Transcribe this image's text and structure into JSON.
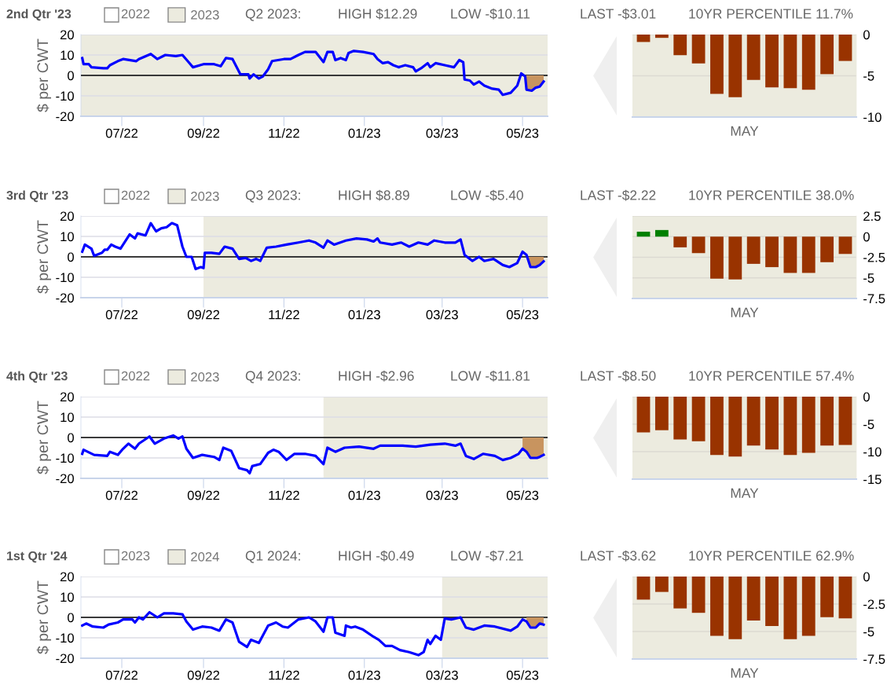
{
  "chart_data": [
    {
      "type": "line",
      "title": "2nd Qtr '23",
      "ylabel": "$ per CWT",
      "xlim": [
        "2022-05-31",
        "2023-05-20"
      ],
      "xticks": [
        {
          "value": "2022-07-01",
          "label": "07/22"
        },
        {
          "value": "2022-09-01",
          "label": "09/22"
        },
        {
          "value": "2022-11-01",
          "label": "11/22"
        },
        {
          "value": "2023-01-01",
          "label": "01/23"
        },
        {
          "value": "2023-03-01",
          "label": "03/23"
        },
        {
          "value": "2023-05-01",
          "label": "05/23"
        }
      ],
      "ylim": [
        -20,
        20
      ],
      "yticks": [
        -20,
        -10,
        0,
        10,
        20
      ],
      "grid": "y",
      "legend": "top left",
      "bands": [
        {
          "axis": "x",
          "from": "2022-05-31",
          "to": "2023-05-20",
          "label": "2023",
          "color": "#ecebdf"
        }
      ],
      "ref_lines": [
        {
          "axis": "y",
          "value": 0,
          "color": "#000000"
        }
      ],
      "annotations": [
        "2022",
        "Q2 2023:",
        "HIGH $12.29",
        "LOW -$10.11",
        "LAST -$3.01",
        "10YR PERCENTILE 11.7%"
      ],
      "series": [
        {
          "color": "#0000ff",
          "x": [
            "2022-06-01",
            "2022-06-02",
            "2022-06-06",
            "2022-06-08",
            "2022-06-17",
            "2022-06-20",
            "2022-06-22",
            "2022-06-28",
            "2022-07-02",
            "2022-07-12",
            "2022-07-14",
            "2022-07-23",
            "2022-07-28",
            "2022-08-03",
            "2022-08-11",
            "2022-08-16",
            "2022-08-20",
            "2022-08-24",
            "2022-09-01",
            "2022-09-09",
            "2022-09-14",
            "2022-09-18",
            "2022-09-23",
            "2022-09-29",
            "2022-10-05",
            "2022-10-06",
            "2022-10-09",
            "2022-10-13",
            "2022-10-16",
            "2022-10-20",
            "2022-10-23",
            "2022-11-01",
            "2022-11-04",
            "2022-11-06",
            "2022-11-12",
            "2022-11-17",
            "2022-11-25",
            "2022-12-01",
            "2022-12-04",
            "2022-12-08",
            "2022-12-10",
            "2022-12-14",
            "2022-12-18",
            "2022-12-20",
            "2022-12-24",
            "2022-12-31",
            "2023-01-08",
            "2023-01-11",
            "2023-01-15",
            "2023-01-19",
            "2023-01-23",
            "2023-01-27",
            "2023-02-01",
            "2023-02-07",
            "2023-02-09",
            "2023-02-13",
            "2023-02-18",
            "2023-02-20",
            "2023-02-24",
            "2023-03-03",
            "2023-03-10",
            "2023-03-14",
            "2023-03-17",
            "2023-03-18",
            "2023-03-22",
            "2023-03-25",
            "2023-03-29",
            "2023-04-02",
            "2023-04-08",
            "2023-04-13",
            "2023-04-16",
            "2023-04-22",
            "2023-04-27",
            "2023-04-30",
            "2023-05-03",
            "2023-05-04",
            "2023-05-08",
            "2023-05-11",
            "2023-05-14",
            "2023-05-17"
          ],
          "values": [
            8.5,
            5.5,
            5.5,
            4,
            3.5,
            3.5,
            5,
            7,
            8,
            7,
            8,
            10.5,
            8,
            10,
            9.5,
            10,
            7,
            4,
            5.5,
            5.5,
            4.5,
            8.5,
            8,
            0.5,
            0.5,
            -1.5,
            0.5,
            -1.5,
            -0.5,
            3,
            7,
            8,
            8,
            8,
            10,
            11.5,
            11.5,
            6.5,
            11.5,
            11.5,
            7.5,
            8.5,
            7.5,
            11,
            12,
            11.5,
            10.5,
            8,
            6,
            6.5,
            5,
            4,
            5,
            4,
            2,
            3.5,
            6,
            4,
            6,
            5,
            4,
            7.5,
            6.5,
            -2,
            -2.5,
            -4.5,
            -3,
            -5,
            -6.5,
            -7,
            -9.5,
            -8.5,
            -5,
            1,
            -0.5,
            -7,
            -7.5,
            -6,
            -5.5,
            -3
          ]
        },
        {
          "type": "area",
          "color": "#c8945f",
          "x": [
            "2023-05-03",
            "2023-05-04",
            "2023-05-08",
            "2023-05-11",
            "2023-05-14",
            "2023-05-17"
          ],
          "values": [
            -0.5,
            -7,
            -7.5,
            -6,
            -5.5,
            -3
          ]
        }
      ]
    },
    {
      "type": "bar",
      "xlabel": "MAY",
      "categories": [
        null,
        null,
        null,
        null,
        null,
        null,
        null,
        null,
        null,
        null,
        null,
        null
      ],
      "values": [
        -0.9,
        -0.4,
        -2.5,
        -3.5,
        -7.2,
        -7.6,
        -5.5,
        -6.4,
        -6.5,
        -6.7,
        -4.8,
        -3.2
      ],
      "colors": [
        "#993300",
        "#993300",
        "#993300",
        "#993300",
        "#993300",
        "#993300",
        "#993300",
        "#993300",
        "#993300",
        "#993300",
        "#993300",
        "#993300"
      ],
      "ylim": [
        -10,
        0
      ],
      "yticks": [
        -10,
        -5,
        0
      ],
      "grid": "y"
    },
    {
      "type": "line",
      "title": "3rd Qtr '23",
      "ylabel": "$ per CWT",
      "xlim": [
        "2022-05-31",
        "2023-05-20"
      ],
      "xticks": [
        {
          "value": "2022-07-01",
          "label": "07/22"
        },
        {
          "value": "2022-09-01",
          "label": "09/22"
        },
        {
          "value": "2022-11-01",
          "label": "11/22"
        },
        {
          "value": "2023-01-01",
          "label": "01/23"
        },
        {
          "value": "2023-03-01",
          "label": "03/23"
        },
        {
          "value": "2023-05-01",
          "label": "05/23"
        }
      ],
      "ylim": [
        -20,
        20
      ],
      "yticks": [
        -20,
        -10,
        0,
        10,
        20
      ],
      "grid": "y",
      "legend": "top left",
      "bands": [
        {
          "axis": "x",
          "from": "2022-09-01",
          "to": "2023-05-20",
          "label": "2023",
          "color": "#ecebdf"
        }
      ],
      "ref_lines": [
        {
          "axis": "y",
          "value": 0,
          "color": "#000000"
        }
      ],
      "annotations": [
        "2022",
        "Q3 2023:",
        "HIGH $8.89",
        "LOW -$5.40",
        "LAST -$2.22",
        "10YR PERCENTILE 38.0%"
      ],
      "series": [
        {
          "color": "#0000ff",
          "x": [
            "2022-06-01",
            "2022-06-03",
            "2022-06-08",
            "2022-06-10",
            "2022-06-16",
            "2022-06-18",
            "2022-06-20",
            "2022-06-23",
            "2022-06-26",
            "2022-06-30",
            "2022-07-07",
            "2022-07-11",
            "2022-07-13",
            "2022-07-19",
            "2022-07-23",
            "2022-07-27",
            "2022-07-31",
            "2022-08-04",
            "2022-08-08",
            "2022-08-12",
            "2022-08-16",
            "2022-08-19",
            "2022-08-23",
            "2022-08-26",
            "2022-08-30",
            "2022-09-01",
            "2022-09-02",
            "2022-09-07",
            "2022-09-13",
            "2022-09-17",
            "2022-09-23",
            "2022-09-28",
            "2022-10-03",
            "2022-10-07",
            "2022-10-11",
            "2022-10-14",
            "2022-10-19",
            "2022-10-26",
            "2022-11-03",
            "2022-11-12",
            "2022-11-20",
            "2022-11-25",
            "2022-12-01",
            "2022-12-04",
            "2022-12-09",
            "2022-12-18",
            "2022-12-26",
            "2023-01-03",
            "2023-01-08",
            "2023-01-11",
            "2023-01-13",
            "2023-01-22",
            "2023-01-29",
            "2023-02-04",
            "2023-02-11",
            "2023-02-18",
            "2023-02-23",
            "2023-03-03",
            "2023-03-11",
            "2023-03-15",
            "2023-03-18",
            "2023-03-24",
            "2023-03-29",
            "2023-04-02",
            "2023-04-09",
            "2023-04-16",
            "2023-04-21",
            "2023-04-27",
            "2023-05-01",
            "2023-05-04",
            "2023-05-07",
            "2023-05-11",
            "2023-05-14",
            "2023-05-17"
          ],
          "values": [
            2.5,
            6,
            4,
            0.5,
            2,
            3.5,
            3.5,
            6,
            5,
            4,
            11,
            9,
            11.5,
            10.5,
            16.5,
            12.5,
            14,
            14.5,
            16.5,
            15.5,
            5,
            0,
            0,
            -6,
            -5,
            -5.5,
            2,
            2,
            1.5,
            5,
            4,
            -1,
            -0.5,
            -2,
            -1,
            -2,
            4.5,
            5,
            6,
            7,
            8,
            7,
            4.5,
            8,
            6,
            8,
            9,
            8.5,
            7.5,
            9,
            7,
            6,
            7,
            5,
            7,
            6,
            8,
            7,
            7,
            8.5,
            1,
            -2,
            0,
            -2,
            -1,
            -4,
            -5,
            -3,
            2.5,
            1,
            -5,
            -5,
            -4,
            -2.2
          ]
        },
        {
          "type": "area",
          "color": "#c8945f",
          "x": [
            "2023-05-04",
            "2023-05-07",
            "2023-05-11",
            "2023-05-14",
            "2023-05-17"
          ],
          "values": [
            1,
            -5,
            -5,
            -4,
            -2.2
          ]
        }
      ]
    },
    {
      "type": "bar",
      "xlabel": "MAY",
      "categories": [
        null,
        null,
        null,
        null,
        null,
        null,
        null,
        null,
        null,
        null,
        null,
        null
      ],
      "values": [
        0.6,
        0.8,
        -1.3,
        -2.0,
        -5.1,
        -5.2,
        -3.3,
        -3.7,
        -4.4,
        -4.4,
        -3.1,
        -2.1
      ],
      "colors": [
        "#008000",
        "#008000",
        "#993300",
        "#993300",
        "#993300",
        "#993300",
        "#993300",
        "#993300",
        "#993300",
        "#993300",
        "#993300",
        "#993300"
      ],
      "ylim": [
        -7.5,
        2.5
      ],
      "yticks": [
        -7.5,
        -5,
        -2.5,
        0,
        2.5
      ],
      "grid": "y"
    },
    {
      "type": "line",
      "title": "4th Qtr '23",
      "ylabel": "$ per CWT",
      "xlim": [
        "2022-05-31",
        "2023-05-20"
      ],
      "xticks": [
        {
          "value": "2022-07-01",
          "label": "07/22"
        },
        {
          "value": "2022-09-01",
          "label": "09/22"
        },
        {
          "value": "2022-11-01",
          "label": "11/22"
        },
        {
          "value": "2023-01-01",
          "label": "01/23"
        },
        {
          "value": "2023-03-01",
          "label": "03/23"
        },
        {
          "value": "2023-05-01",
          "label": "05/23"
        }
      ],
      "ylim": [
        -20,
        20
      ],
      "yticks": [
        -20,
        -10,
        0,
        10,
        20
      ],
      "grid": "y",
      "legend": "top left",
      "bands": [
        {
          "axis": "x",
          "from": "2022-12-01",
          "to": "2023-05-20",
          "label": "2023",
          "color": "#ecebdf"
        }
      ],
      "ref_lines": [
        {
          "axis": "y",
          "value": 0,
          "color": "#000000"
        }
      ],
      "annotations": [
        "2022",
        "Q4 2023:",
        "HIGH -$2.96",
        "LOW -$11.81",
        "LAST -$8.50",
        "10YR PERCENTILE 57.4%"
      ],
      "series": [
        {
          "color": "#0000ff",
          "x": [
            "2022-06-01",
            "2022-06-02",
            "2022-06-10",
            "2022-06-20",
            "2022-06-22",
            "2022-06-28",
            "2022-07-02",
            "2022-07-06",
            "2022-07-11",
            "2022-07-14",
            "2022-07-22",
            "2022-07-26",
            "2022-08-02",
            "2022-08-09",
            "2022-08-13",
            "2022-08-16",
            "2022-08-19",
            "2022-08-24",
            "2022-08-31",
            "2022-09-09",
            "2022-09-13",
            "2022-09-16",
            "2022-09-22",
            "2022-09-28",
            "2022-10-04",
            "2022-10-06",
            "2022-10-08",
            "2022-10-14",
            "2022-10-20",
            "2022-10-24",
            "2022-10-28",
            "2022-11-03",
            "2022-11-09",
            "2022-11-17",
            "2022-11-25",
            "2022-12-01",
            "2022-12-04",
            "2022-12-10",
            "2022-12-17",
            "2022-12-28",
            "2023-01-08",
            "2023-01-13",
            "2023-01-30",
            "2023-02-09",
            "2023-02-20",
            "2023-03-03",
            "2023-03-11",
            "2023-03-15",
            "2023-03-19",
            "2023-03-25",
            "2023-04-01",
            "2023-04-10",
            "2023-04-16",
            "2023-04-22",
            "2023-04-28",
            "2023-05-01",
            "2023-05-04",
            "2023-05-07",
            "2023-05-12",
            "2023-05-14",
            "2023-05-17"
          ],
          "values": [
            -8,
            -6,
            -8.5,
            -9,
            -7,
            -8.5,
            -5.5,
            -3,
            -5.5,
            -3,
            0.5,
            -3,
            -0.5,
            1,
            -0.5,
            0.5,
            -5.5,
            -10,
            -8.5,
            -9.5,
            -11,
            -5,
            -6.5,
            -15,
            -16,
            -17.5,
            -14,
            -13,
            -7.5,
            -6,
            -7,
            -11,
            -8,
            -8,
            -9,
            -13,
            -5,
            -7,
            -5,
            -4.5,
            -5.5,
            -4,
            -4,
            -4.5,
            -3.5,
            -3,
            -4,
            -3,
            -9,
            -10.5,
            -8,
            -9,
            -11,
            -10,
            -8,
            -5.5,
            -7,
            -10,
            -10,
            -9.5,
            -8.5
          ]
        },
        {
          "type": "area",
          "color": "#c8945f",
          "x": [
            "2023-05-01",
            "2023-05-04",
            "2023-05-07",
            "2023-05-12",
            "2023-05-14",
            "2023-05-17"
          ],
          "values": [
            -5.5,
            -7,
            -10,
            -10,
            -9.5,
            -8.5
          ]
        }
      ]
    },
    {
      "type": "bar",
      "xlabel": "MAY",
      "categories": [
        null,
        null,
        null,
        null,
        null,
        null,
        null,
        null,
        null,
        null,
        null,
        null
      ],
      "values": [
        -6.5,
        -6.1,
        -7.8,
        -8.1,
        -10.6,
        -10.9,
        -8.9,
        -9.6,
        -10.6,
        -10.2,
        -8.9,
        -8.8
      ],
      "colors": [
        "#993300",
        "#993300",
        "#993300",
        "#993300",
        "#993300",
        "#993300",
        "#993300",
        "#993300",
        "#993300",
        "#993300",
        "#993300",
        "#993300"
      ],
      "ylim": [
        -15,
        0
      ],
      "yticks": [
        -15,
        -10,
        -5,
        0
      ],
      "grid": "y"
    },
    {
      "type": "line",
      "title": "1st Qtr '24",
      "ylabel": "$ per CWT",
      "xlim": [
        "2022-05-31",
        "2023-05-20"
      ],
      "xticks": [
        {
          "value": "2022-07-01",
          "label": "07/22"
        },
        {
          "value": "2022-09-01",
          "label": "09/22"
        },
        {
          "value": "2022-11-01",
          "label": "11/22"
        },
        {
          "value": "2023-01-01",
          "label": "01/23"
        },
        {
          "value": "2023-03-01",
          "label": "03/23"
        },
        {
          "value": "2023-05-01",
          "label": "05/23"
        }
      ],
      "ylim": [
        -20,
        20
      ],
      "yticks": [
        -20,
        -10,
        0,
        10,
        20
      ],
      "grid": "y",
      "legend": "top left",
      "bands": [
        {
          "axis": "x",
          "from": "2023-03-01",
          "to": "2023-05-20",
          "label": "2024",
          "color": "#ecebdf"
        }
      ],
      "ref_lines": [
        {
          "axis": "y",
          "value": 0,
          "color": "#000000"
        }
      ],
      "annotations": [
        "2023",
        "Q1 2024:",
        "HIGH -$0.49",
        "LOW -$7.21",
        "LAST -$3.62",
        "10YR PERCENTILE 62.9%"
      ],
      "series": [
        {
          "color": "#0000ff",
          "x": [
            "2022-06-01",
            "2022-06-04",
            "2022-06-09",
            "2022-06-17",
            "2022-06-21",
            "2022-06-28",
            "2022-07-02",
            "2022-07-09",
            "2022-07-11",
            "2022-07-14",
            "2022-07-17",
            "2022-07-22",
            "2022-07-28",
            "2022-08-02",
            "2022-08-09",
            "2022-08-16",
            "2022-08-19",
            "2022-08-24",
            "2022-08-31",
            "2022-09-07",
            "2022-09-13",
            "2022-09-18",
            "2022-09-23",
            "2022-09-28",
            "2022-10-04",
            "2022-10-07",
            "2022-10-13",
            "2022-10-20",
            "2022-10-26",
            "2022-10-31",
            "2022-11-04",
            "2022-11-12",
            "2022-11-20",
            "2022-11-25",
            "2022-12-01",
            "2022-12-04",
            "2022-12-08",
            "2022-12-10",
            "2022-12-17",
            "2022-12-18",
            "2022-12-22",
            "2022-12-25",
            "2022-12-31",
            "2023-01-08",
            "2023-01-12",
            "2023-01-17",
            "2023-01-22",
            "2023-01-28",
            "2023-02-04",
            "2023-02-11",
            "2023-02-15",
            "2023-02-18",
            "2023-02-20",
            "2023-02-24",
            "2023-02-28",
            "2023-03-03",
            "2023-03-08",
            "2023-03-15",
            "2023-03-19",
            "2023-03-25",
            "2023-04-02",
            "2023-04-10",
            "2023-04-22",
            "2023-04-27",
            "2023-05-01",
            "2023-05-04",
            "2023-05-07",
            "2023-05-11",
            "2023-05-14",
            "2023-05-17"
          ],
          "values": [
            -4,
            -3,
            -4.5,
            -5,
            -3.5,
            -2.5,
            -1,
            -1,
            -2.5,
            0,
            -1,
            2.5,
            0,
            2,
            2,
            1.5,
            -2,
            -6,
            -4.5,
            -5,
            -6.5,
            -1,
            -2.5,
            -12,
            -14.5,
            -11,
            -12.5,
            -4,
            -2.5,
            -4.5,
            -5,
            -1,
            0,
            -2,
            -7,
            0,
            0,
            -7.5,
            -9,
            -4,
            -5,
            -4.5,
            -6,
            -9.5,
            -11,
            -14,
            -14,
            -16,
            -17,
            -18.5,
            -17,
            -11,
            -13,
            -9,
            -11,
            -0.5,
            -1,
            0,
            -5,
            -6,
            -4,
            -4.5,
            -6.5,
            -4.5,
            -1,
            -2,
            -5,
            -5,
            -3,
            -3.6
          ]
        },
        {
          "type": "area",
          "color": "#c8945f",
          "x": [
            "2023-05-04",
            "2023-05-07",
            "2023-05-11",
            "2023-05-14",
            "2023-05-17"
          ],
          "values": [
            -2,
            -5,
            -5,
            -3,
            -3.6
          ]
        }
      ]
    },
    {
      "type": "bar",
      "xlabel": "MAY",
      "categories": [
        null,
        null,
        null,
        null,
        null,
        null,
        null,
        null,
        null,
        null,
        null,
        null
      ],
      "values": [
        -2.1,
        -1.4,
        -2.9,
        -3.3,
        -5.4,
        -5.7,
        -4.0,
        -4.5,
        -5.7,
        -5.4,
        -3.7,
        -3.8
      ],
      "colors": [
        "#993300",
        "#993300",
        "#993300",
        "#993300",
        "#993300",
        "#993300",
        "#993300",
        "#993300",
        "#993300",
        "#993300",
        "#993300",
        "#993300"
      ],
      "ylim": [
        -7.5,
        0
      ],
      "yticks": [
        -7.5,
        -5,
        -2.5,
        0
      ],
      "grid": "y"
    }
  ]
}
